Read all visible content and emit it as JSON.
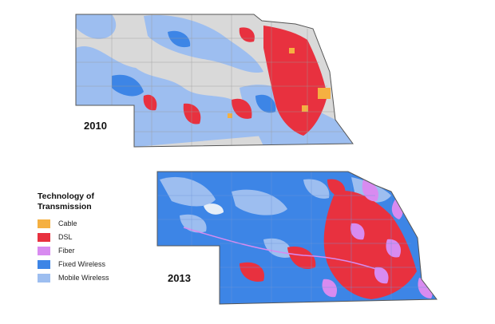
{
  "maps": [
    {
      "year": "2010"
    },
    {
      "year": "2013"
    }
  ],
  "legend": {
    "title": "Technology of Transmission",
    "items": [
      {
        "label": "Cable",
        "color": "#F5B041"
      },
      {
        "label": "DSL",
        "color": "#E8313F"
      },
      {
        "label": "Fiber",
        "color": "#D88BF0"
      },
      {
        "label": "Fixed Wireless",
        "color": "#3D85E6"
      },
      {
        "label": "Mobile Wireless",
        "color": "#9DBEF0"
      }
    ]
  },
  "colors": {
    "no_coverage": "#D9D9D9",
    "border": "#555555"
  }
}
